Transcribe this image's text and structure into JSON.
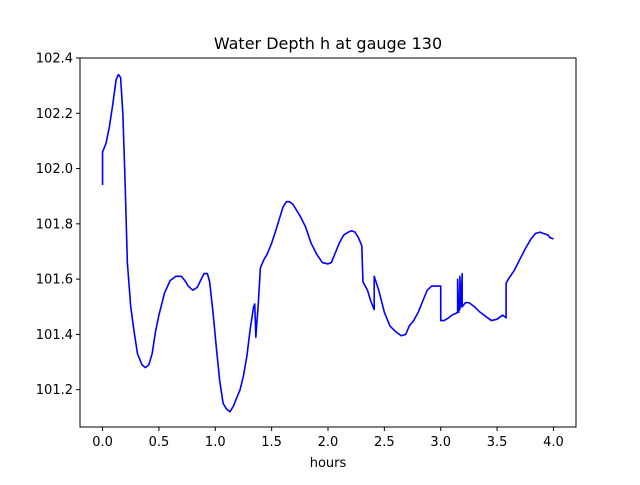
{
  "chart_data": {
    "type": "line",
    "title": "Water Depth h at gauge 130",
    "xlabel": "hours",
    "ylabel": "",
    "xlim": [
      -0.2,
      4.2
    ],
    "ylim": [
      101.065,
      102.4
    ],
    "xticks": [
      0.0,
      0.5,
      1.0,
      1.5,
      2.0,
      2.5,
      3.0,
      3.5,
      4.0
    ],
    "xtick_labels": [
      "0.0",
      "0.5",
      "1.0",
      "1.5",
      "2.0",
      "2.5",
      "3.0",
      "3.5",
      "4.0"
    ],
    "yticks": [
      101.2,
      101.4,
      101.6,
      101.8,
      102.0,
      102.2,
      102.4
    ],
    "ytick_labels": [
      "101.2",
      "101.4",
      "101.6",
      "101.8",
      "102.0",
      "102.2",
      "102.4"
    ],
    "grid": false,
    "legend": "none",
    "series": [
      {
        "color": "#0000ff",
        "x": [
          0.0,
          0.0,
          0.03,
          0.06,
          0.09,
          0.12,
          0.14,
          0.16,
          0.18,
          0.2,
          0.22,
          0.25,
          0.28,
          0.31,
          0.35,
          0.38,
          0.41,
          0.44,
          0.47,
          0.5,
          0.55,
          0.6,
          0.65,
          0.7,
          0.73,
          0.76,
          0.8,
          0.84,
          0.87,
          0.9,
          0.93,
          0.95,
          0.98,
          1.01,
          1.04,
          1.07,
          1.1,
          1.13,
          1.16,
          1.19,
          1.22,
          1.25,
          1.28,
          1.31,
          1.34,
          1.35,
          1.36,
          1.37,
          1.38,
          1.4,
          1.43,
          1.46,
          1.5,
          1.54,
          1.57,
          1.6,
          1.63,
          1.66,
          1.69,
          1.72,
          1.75,
          1.8,
          1.85,
          1.9,
          1.95,
          2.0,
          2.03,
          2.06,
          2.1,
          2.14,
          2.18,
          2.21,
          2.24,
          2.27,
          2.3,
          2.31,
          2.35,
          2.38,
          2.41,
          2.41,
          2.45,
          2.5,
          2.55,
          2.6,
          2.65,
          2.69,
          2.72,
          2.76,
          2.8,
          2.84,
          2.88,
          2.92,
          2.96,
          3.0,
          3.0,
          3.03,
          3.07,
          3.1,
          3.13,
          3.15,
          3.15,
          3.16,
          3.16,
          3.17,
          3.17,
          3.18,
          3.19,
          3.19,
          3.2,
          3.22,
          3.25,
          3.3,
          3.35,
          3.4,
          3.45,
          3.5,
          3.55,
          3.58,
          3.58,
          3.6,
          3.65,
          3.7,
          3.75,
          3.8,
          3.84,
          3.88,
          3.91,
          3.95,
          3.97,
          4.0
        ],
        "values": [
          101.94,
          102.06,
          102.09,
          102.15,
          102.23,
          102.32,
          102.34,
          102.33,
          102.2,
          101.95,
          101.66,
          101.5,
          101.41,
          101.33,
          101.29,
          101.28,
          101.29,
          101.33,
          101.41,
          101.47,
          101.55,
          101.595,
          101.61,
          101.61,
          101.595,
          101.575,
          101.56,
          101.57,
          101.595,
          101.62,
          101.62,
          101.59,
          101.48,
          101.35,
          101.23,
          101.15,
          101.13,
          101.12,
          101.14,
          101.17,
          101.2,
          101.25,
          101.32,
          101.42,
          101.5,
          101.51,
          101.39,
          101.45,
          101.5,
          101.64,
          101.67,
          101.69,
          101.73,
          101.78,
          101.82,
          101.86,
          101.88,
          101.88,
          101.87,
          101.85,
          101.83,
          101.79,
          101.73,
          101.69,
          101.66,
          101.655,
          101.66,
          101.69,
          101.73,
          101.76,
          101.77,
          101.775,
          101.77,
          101.75,
          101.72,
          101.59,
          101.56,
          101.52,
          101.49,
          101.61,
          101.56,
          101.48,
          101.43,
          101.41,
          101.395,
          101.4,
          101.43,
          101.45,
          101.48,
          101.52,
          101.56,
          101.575,
          101.575,
          101.575,
          101.45,
          101.45,
          101.46,
          101.47,
          101.475,
          101.48,
          101.6,
          101.48,
          101.49,
          101.49,
          101.61,
          101.5,
          101.62,
          101.5,
          101.505,
          101.515,
          101.515,
          101.5,
          101.48,
          101.465,
          101.45,
          101.455,
          101.47,
          101.46,
          101.585,
          101.6,
          101.63,
          101.67,
          101.71,
          101.745,
          101.765,
          101.77,
          101.765,
          101.76,
          101.75,
          101.745
        ]
      }
    ]
  }
}
